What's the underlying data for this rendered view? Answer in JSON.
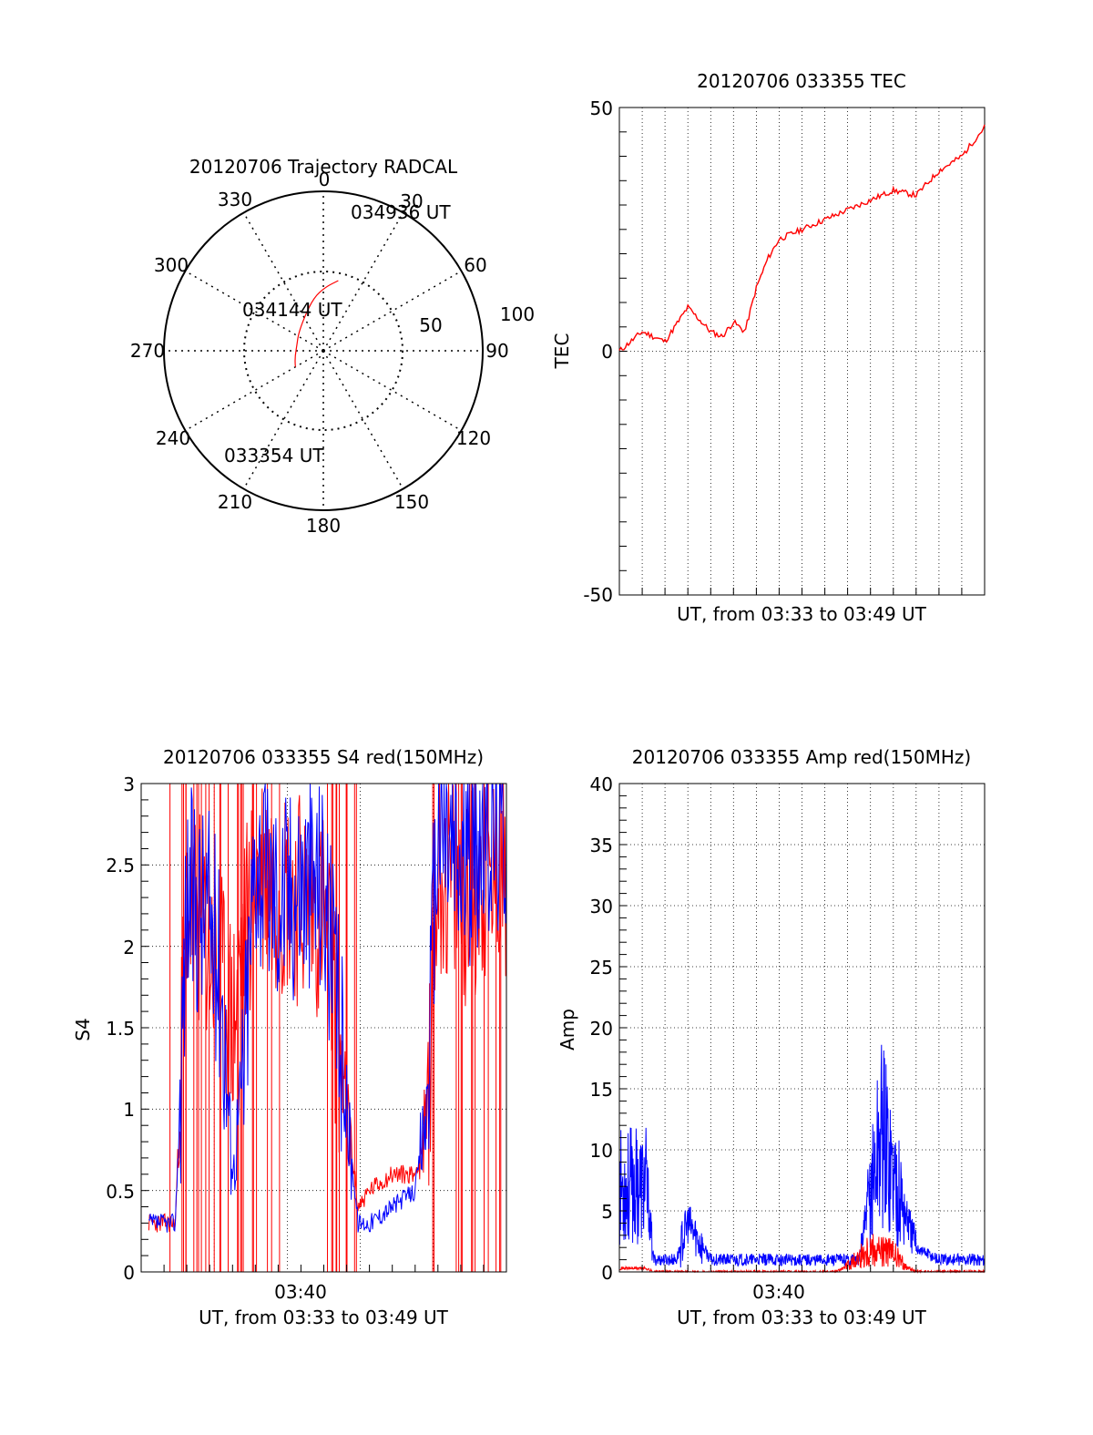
{
  "chart_data": [
    {
      "id": "polar",
      "type": "scatter",
      "title": "20120706 Trajectory RADCAL",
      "angle_labels": [
        "0",
        "30",
        "60",
        "90",
        "120",
        "150",
        "180",
        "210",
        "240",
        "270",
        "300",
        "330"
      ],
      "radius_labels": [
        "50",
        "100"
      ],
      "rlim": [
        0,
        100
      ],
      "grid": true,
      "annotations": [
        "034936 UT",
        "034144 UT",
        "033354 UT"
      ],
      "series": [
        {
          "color": "#ff0000",
          "points": [
            [
              12,
              45
            ],
            [
              2,
              40
            ],
            [
              -10,
              34
            ],
            [
              -30,
              24
            ],
            [
              -55,
              19
            ],
            [
              -76,
              17
            ],
            [
              -100,
              18
            ],
            [
              -118,
              20
            ],
            [
              -120,
              20
            ]
          ]
        }
      ]
    },
    {
      "id": "tec",
      "type": "line",
      "title": "20120706 033355 TEC",
      "xlabel": "UT, from 03:33 to 03:49 UT",
      "ylabel": "TEC",
      "xlim": [
        "03:33",
        "03:49"
      ],
      "ylim": [
        -50,
        50
      ],
      "yticks": [
        "50",
        "0",
        "-50"
      ],
      "grid": true,
      "series": [
        {
          "color": "#ff0000",
          "x": [
            "03:33",
            "03:34",
            "03:35",
            "03:36",
            "03:37",
            "03:37:30",
            "03:38",
            "03:38:30",
            "03:39",
            "03:39:30",
            "03:40",
            "03:41",
            "03:42",
            "03:43",
            "03:44",
            "03:45",
            "03:46",
            "03:47",
            "03:48",
            "03:49"
          ],
          "values": [
            0,
            4,
            2,
            9,
            4,
            3,
            6,
            4,
            13,
            19,
            23,
            25,
            27,
            29,
            31,
            33,
            32,
            37,
            40,
            46
          ]
        }
      ]
    },
    {
      "id": "s4",
      "type": "line",
      "title": "20120706 033355 S4 red(150MHz)",
      "xlabel": "UT, from 03:33 to 03:49 UT",
      "ylabel": "S4",
      "xlim": [
        "03:33",
        "03:49"
      ],
      "ylim": [
        0,
        3
      ],
      "xticks": [
        "03:40"
      ],
      "yticks": [
        "0",
        "0.5",
        "1",
        "1.5",
        "2",
        "2.5",
        "3"
      ],
      "grid": true,
      "series": [
        {
          "color": "#0000ff",
          "x": [
            "03:33:20",
            "03:34:30",
            "03:35:00",
            "03:36:00",
            "03:36:30",
            "03:37:00",
            "03:37:30",
            "03:38:00",
            "03:39:00",
            "03:40:00",
            "03:41:00",
            "03:42:30",
            "03:43:00",
            "03:44:00",
            "03:45:00",
            "03:45:30",
            "03:46:00",
            "03:47:00",
            "03:48:00",
            "03:49:00"
          ],
          "values": [
            0.3,
            0.3,
            2.3,
            2.2,
            1.8,
            0.6,
            1.3,
            2.6,
            2.3,
            2.4,
            2.4,
            0.3,
            0.3,
            0.4,
            0.5,
            1.0,
            2.8,
            2.5,
            2.7,
            2.8
          ]
        },
        {
          "color": "#ff0000",
          "x": [
            "03:33:20",
            "03:34:30",
            "03:35:00",
            "03:36:00",
            "03:37:00",
            "03:38:00",
            "03:40:00",
            "03:41:00",
            "03:42:30",
            "03:43:00",
            "03:44:00",
            "03:45:00",
            "03:45:30",
            "03:46:00",
            "03:47:00",
            "03:48:00",
            "03:49:00"
          ],
          "values": [
            0.3,
            0.3,
            2.3,
            2.0,
            1.5,
            2.5,
            2.3,
            2.2,
            0.4,
            0.5,
            0.6,
            0.6,
            0.9,
            2.5,
            2.3,
            2.4,
            2.5
          ]
        }
      ]
    },
    {
      "id": "amp",
      "type": "line",
      "title": "20120706 033355 Amp red(150MHz)",
      "xlabel": "UT, from 03:33 to 03:49 UT",
      "ylabel": "Amp",
      "xlim": [
        "03:33",
        "03:49"
      ],
      "ylim": [
        0,
        40
      ],
      "xticks": [
        "03:40"
      ],
      "yticks": [
        "0",
        "5",
        "10",
        "15",
        "20",
        "25",
        "30",
        "35",
        "40"
      ],
      "grid": true,
      "series": [
        {
          "color": "#0000ff",
          "x": [
            "03:33",
            "03:34:10",
            "03:34:30",
            "03:35:30",
            "03:36:00",
            "03:37:00",
            "03:38:00",
            "03:39:00",
            "03:40:00",
            "03:41:00",
            "03:42:30",
            "03:43:30",
            "03:44:30",
            "03:45:00",
            "03:46:00",
            "03:47:00",
            "03:48:00",
            "03:49:00"
          ],
          "values": [
            7,
            7,
            1,
            1,
            4,
            1,
            1,
            1,
            1,
            1,
            1,
            1,
            12,
            8,
            2,
            1,
            1,
            1
          ]
        },
        {
          "color": "#ff0000",
          "x": [
            "03:33",
            "03:34:10",
            "03:34:30",
            "03:42:30",
            "03:43:00",
            "03:44:00",
            "03:45:00",
            "03:45:30",
            "03:46:00",
            "03:49:00"
          ],
          "values": [
            0.3,
            0.3,
            0,
            0,
            0.5,
            2,
            1.5,
            0.5,
            0,
            0
          ]
        }
      ]
    }
  ]
}
